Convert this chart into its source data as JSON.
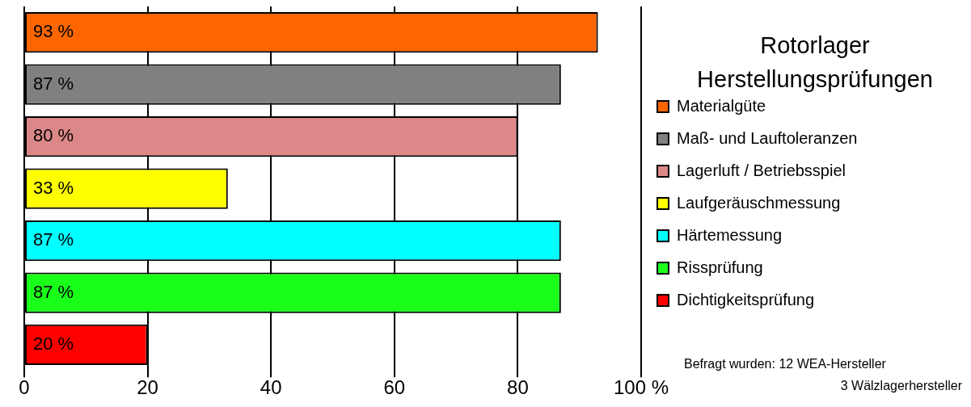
{
  "chart_data": {
    "type": "bar",
    "orientation": "horizontal",
    "stacked": true,
    "title": "Rotorlager",
    "subtitle": "Herstellungsprüfungen",
    "categories": [
      null,
      null,
      null,
      null,
      null,
      null,
      null
    ],
    "series": [
      {
        "name": "Materialgüte",
        "color": "#ff6600",
        "values": [
          93,
          null,
          null,
          null,
          null,
          null,
          null
        ],
        "value_labels": [
          "93 %",
          null,
          null,
          null,
          null,
          null,
          null
        ]
      },
      {
        "name": "Maß- und Lauftoleranzen",
        "color": "#808080",
        "values": [
          null,
          87,
          null,
          null,
          null,
          null,
          null
        ],
        "value_labels": [
          null,
          "87 %",
          null,
          null,
          null,
          null,
          null
        ]
      },
      {
        "name": "Lagerluft / Betriebsspiel",
        "color": "#dc8888",
        "values": [
          null,
          null,
          80,
          null,
          null,
          null,
          null
        ],
        "value_labels": [
          null,
          null,
          "80 %",
          null,
          null,
          null,
          null
        ]
      },
      {
        "name": "Laufgeräuschmessung",
        "color": "#ffff00",
        "values": [
          null,
          null,
          null,
          33,
          null,
          null,
          null
        ],
        "value_labels": [
          null,
          null,
          null,
          "33 %",
          null,
          null,
          null
        ]
      },
      {
        "name": "Härtemessung",
        "color": "#00ffff",
        "values": [
          null,
          null,
          null,
          null,
          87,
          null,
          null
        ],
        "value_labels": [
          null,
          null,
          null,
          null,
          "87 %",
          null,
          null
        ]
      },
      {
        "name": "Rissprüfung",
        "color": "#1aff1a",
        "values": [
          null,
          null,
          null,
          null,
          null,
          87,
          null
        ],
        "value_labels": [
          null,
          null,
          null,
          null,
          null,
          "87 %",
          null
        ]
      },
      {
        "name": "Dichtigkeitsprüfung",
        "color": "#ff0000",
        "values": [
          null,
          null,
          null,
          null,
          null,
          null,
          20
        ],
        "value_labels": [
          null,
          null,
          null,
          null,
          null,
          null,
          "20 %"
        ]
      }
    ],
    "xlim": [
      0,
      100
    ],
    "xticks": [
      0,
      20,
      40,
      60,
      80,
      {
        "value": 100,
        "label": "100 %"
      }
    ],
    "grid": "x",
    "legend": "right",
    "tick_labels": "x",
    "annotations": [
      "Befragt wurden: 12 WEA-Hersteller",
      "3 Wälzlagerhersteller"
    ]
  }
}
